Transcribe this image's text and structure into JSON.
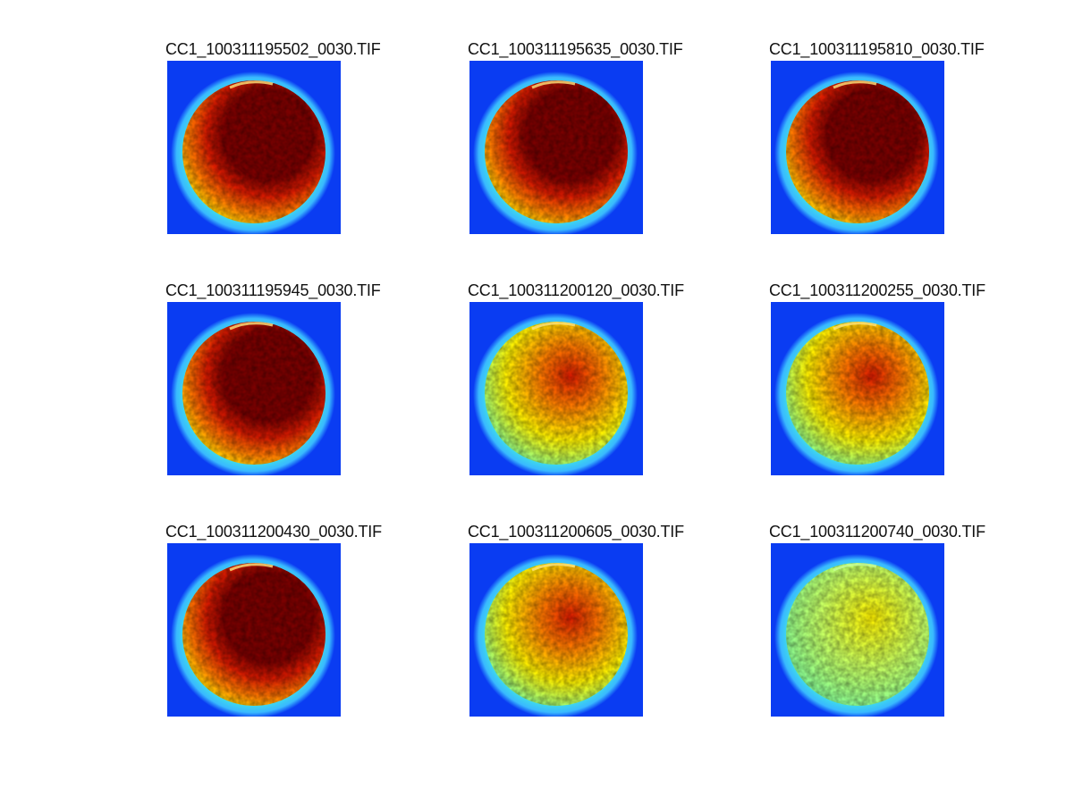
{
  "figure": {
    "panels": [
      {
        "title": "CC1_100311195502_0030.TIF",
        "intensity": 1.0
      },
      {
        "title": "CC1_100311195635_0030.TIF",
        "intensity": 1.0
      },
      {
        "title": "CC1_100311195810_0030.TIF",
        "intensity": 1.0
      },
      {
        "title": "CC1_100311195945_0030.TIF",
        "intensity": 0.92
      },
      {
        "title": "CC1_100311200120_0030.TIF",
        "intensity": 0.6
      },
      {
        "title": "CC1_100311200255_0030.TIF",
        "intensity": 0.55
      },
      {
        "title": "CC1_100311200430_0030.TIF",
        "intensity": 0.85
      },
      {
        "title": "CC1_100311200605_0030.TIF",
        "intensity": 0.45
      },
      {
        "title": "CC1_100311200740_0030.TIF",
        "intensity": 0.15
      }
    ],
    "colors": {
      "background": "#0a3cf2",
      "ring": "#3fe0e8",
      "dark_red": "#7a0000",
      "red": "#d81a00",
      "orange": "#ff7a00",
      "yellow": "#fff200",
      "cyan_green": "#7dfa9a"
    }
  }
}
